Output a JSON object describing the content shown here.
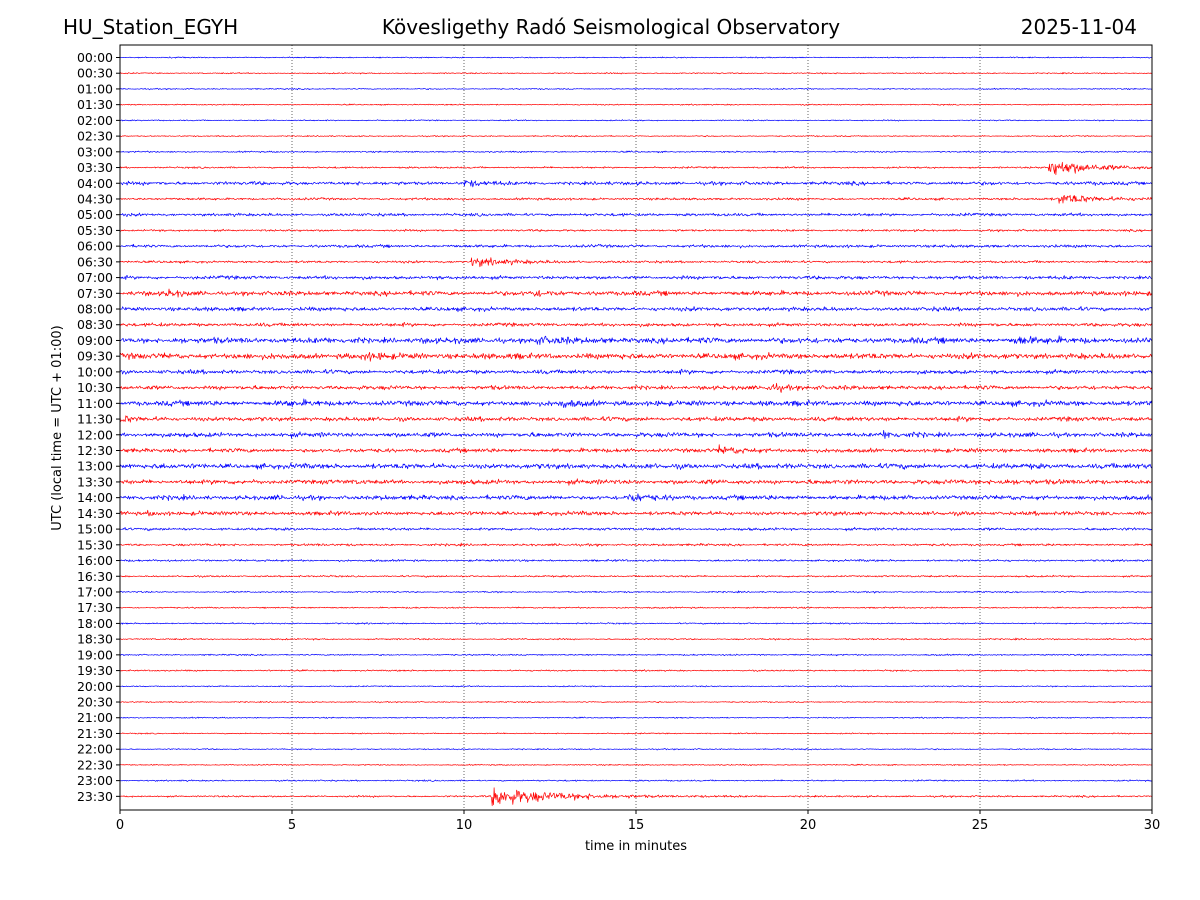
{
  "header": {
    "station": "HU_Station_EGYH",
    "observatory": "Kövesligethy Radó Seismological Observatory",
    "date": "2025-11-04"
  },
  "chart_data": {
    "type": "line",
    "subtype": "helicorder",
    "xlabel": "time in minutes",
    "ylabel": "UTC (local time = UTC + 01:00)",
    "xlim": [
      0,
      30
    ],
    "x_ticks": [
      0,
      5,
      10,
      15,
      20,
      25,
      30
    ],
    "grid": "vertical dotted lines at 5-minute ticks",
    "rows": [
      "00:00",
      "00:30",
      "01:00",
      "01:30",
      "02:00",
      "02:30",
      "03:00",
      "03:30",
      "04:00",
      "04:30",
      "05:00",
      "05:30",
      "06:00",
      "06:30",
      "07:00",
      "07:30",
      "08:00",
      "08:30",
      "09:00",
      "09:30",
      "10:00",
      "10:30",
      "11:00",
      "11:30",
      "12:00",
      "12:30",
      "13:00",
      "13:30",
      "14:00",
      "14:30",
      "15:00",
      "15:30",
      "16:00",
      "16:30",
      "17:00",
      "17:30",
      "18:00",
      "18:30",
      "19:00",
      "19:30",
      "20:00",
      "20:30",
      "21:00",
      "21:30",
      "22:00",
      "22:30",
      "23:00",
      "23:30"
    ],
    "colors": [
      "#0000ff",
      "#ff0000"
    ],
    "noise_level": [
      0.4,
      0.4,
      0.4,
      0.4,
      0.4,
      0.4,
      0.5,
      0.6,
      1.2,
      0.8,
      1.0,
      0.7,
      1.0,
      0.8,
      1.2,
      1.6,
      1.4,
      1.2,
      2.0,
      2.0,
      1.4,
      1.4,
      1.8,
      1.5,
      1.6,
      1.4,
      1.8,
      1.6,
      1.6,
      1.4,
      0.9,
      0.8,
      0.7,
      0.6,
      0.5,
      0.5,
      0.5,
      0.5,
      0.5,
      0.5,
      0.4,
      0.4,
      0.4,
      0.4,
      0.4,
      0.4,
      0.5,
      0.6
    ],
    "events": [
      {
        "row": "03:30",
        "start_min": 27.0,
        "peak_amplitude": 8,
        "duration_min": 3.5
      },
      {
        "row": "04:00",
        "start_min": 10.0,
        "peak_amplitude": 2.5,
        "duration_min": 1.5
      },
      {
        "row": "04:30",
        "start_min": 27.3,
        "peak_amplitude": 5,
        "duration_min": 3.0
      },
      {
        "row": "06:30",
        "start_min": 10.2,
        "peak_amplitude": 4,
        "duration_min": 3.0
      },
      {
        "row": "07:30",
        "start_min": 12.0,
        "peak_amplitude": 2.5,
        "duration_min": 1.2
      },
      {
        "row": "07:30",
        "start_min": 1.3,
        "peak_amplitude": 2.5,
        "duration_min": 1.2
      },
      {
        "row": "09:00",
        "start_min": 12.0,
        "peak_amplitude": 2.5,
        "duration_min": 2.0
      },
      {
        "row": "09:00",
        "start_min": 26.0,
        "peak_amplitude": 2.5,
        "duration_min": 2.0
      },
      {
        "row": "09:30",
        "start_min": 7.0,
        "peak_amplitude": 2.5,
        "duration_min": 1.5
      },
      {
        "row": "10:30",
        "start_min": 18.8,
        "peak_amplitude": 3,
        "duration_min": 2.0
      },
      {
        "row": "11:00",
        "start_min": 12.8,
        "peak_amplitude": 3,
        "duration_min": 1.5
      },
      {
        "row": "11:00",
        "start_min": 4.8,
        "peak_amplitude": 2.5,
        "duration_min": 1.0
      },
      {
        "row": "11:30",
        "start_min": 0.0,
        "peak_amplitude": 2.5,
        "duration_min": 1.0
      },
      {
        "row": "12:00",
        "start_min": 22.2,
        "peak_amplitude": 3,
        "duration_min": 1.0
      },
      {
        "row": "12:30",
        "start_min": 17.4,
        "peak_amplitude": 3,
        "duration_min": 2.0
      },
      {
        "row": "13:30",
        "start_min": 25.5,
        "peak_amplitude": 2.5,
        "duration_min": 1.5
      },
      {
        "row": "14:00",
        "start_min": 14.8,
        "peak_amplitude": 3.5,
        "duration_min": 1.5
      },
      {
        "row": "14:30",
        "start_min": 0.8,
        "peak_amplitude": 2,
        "duration_min": 1.0
      },
      {
        "row": "23:30",
        "start_min": 10.8,
        "peak_amplitude": 9,
        "duration_min": 5.0
      }
    ]
  }
}
